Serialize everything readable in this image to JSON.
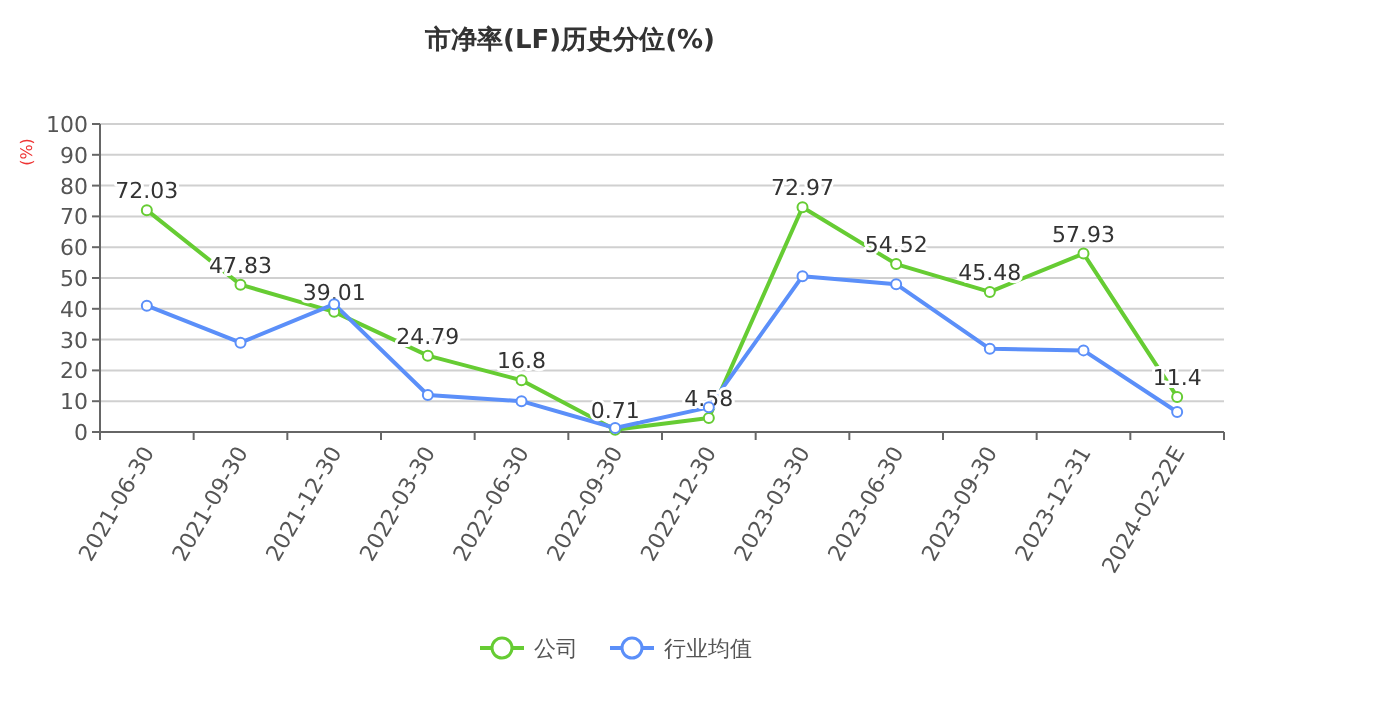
{
  "chart_data": {
    "type": "line",
    "title": "市净率(LF)历史分位(%)",
    "ylabel": "(%)",
    "categories": [
      "2021-06-30",
      "2021-09-30",
      "2021-12-30",
      "2022-03-30",
      "2022-06-30",
      "2022-09-30",
      "2022-12-30",
      "2023-03-30",
      "2023-06-30",
      "2023-09-30",
      "2023-12-31",
      "2024-02-22E"
    ],
    "series": [
      {
        "name": "公司",
        "color": "#66cc33",
        "values": [
          72.03,
          47.83,
          39.01,
          24.79,
          16.8,
          0.71,
          4.58,
          72.97,
          54.52,
          45.48,
          57.93,
          11.4
        ],
        "value_labels": [
          "72.03",
          "47.83",
          "39.01",
          "24.79",
          "16.8",
          "0.71",
          "4.58",
          "72.97",
          "54.52",
          "45.48",
          "57.93",
          "11.4"
        ]
      },
      {
        "name": "行业均值",
        "color": "#5b8ff9",
        "values": [
          41,
          29,
          41.5,
          12,
          10,
          1.3,
          8,
          50.6,
          48,
          27,
          26.5,
          6.5
        ]
      }
    ],
    "ylim": [
      0,
      100
    ],
    "yticks": [
      0,
      10,
      20,
      30,
      40,
      50,
      60,
      70,
      80,
      90,
      100
    ],
    "grid": "y",
    "legend": "bottom",
    "marker": "circle"
  }
}
